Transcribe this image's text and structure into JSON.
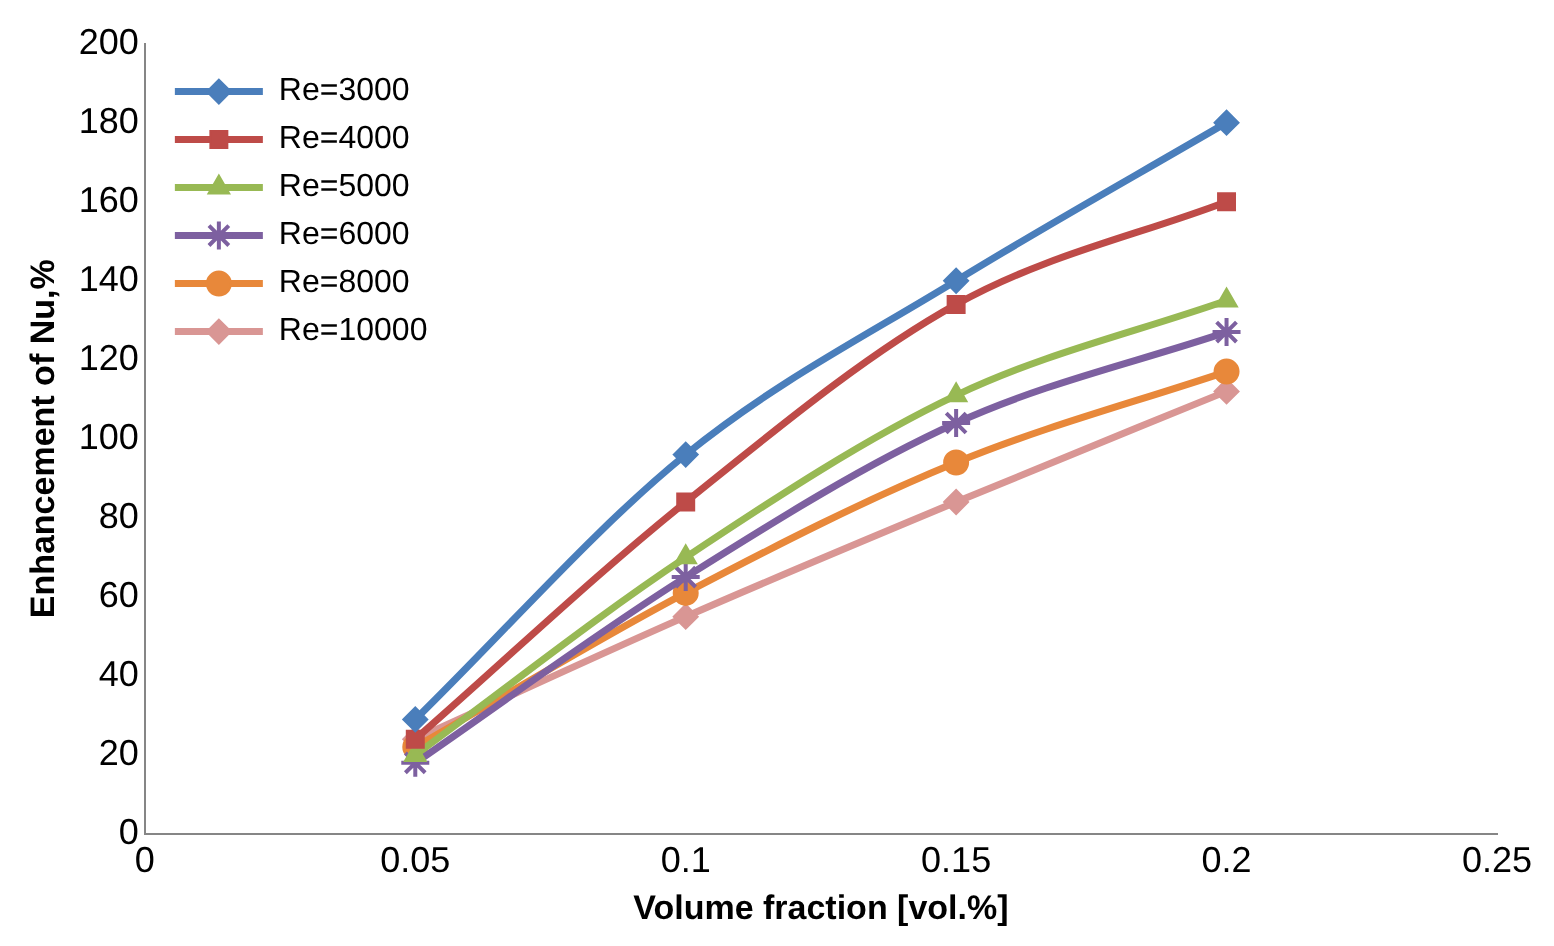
{
  "chart_data": {
    "type": "line",
    "xlabel": "Volume fraction [vol.%]",
    "ylabel": "Enhancement of Nu,%",
    "x": [
      0.05,
      0.1,
      0.15,
      0.2
    ],
    "xlim": [
      0,
      0.25
    ],
    "xticks": [
      0,
      0.05,
      0.1,
      0.15,
      0.2,
      0.25
    ],
    "ylim": [
      0,
      200
    ],
    "yticks": [
      0,
      20,
      40,
      60,
      80,
      100,
      120,
      140,
      160,
      180,
      200
    ],
    "grid": false,
    "legend": "top left",
    "series": [
      {
        "name": "Re=3000",
        "color": "#4a7ebb",
        "marker": "diamond",
        "values": [
          29,
          96,
          140,
          180
        ]
      },
      {
        "name": "Re=4000",
        "color": "#be4b48",
        "marker": "square",
        "values": [
          24,
          84,
          134,
          160
        ]
      },
      {
        "name": "Re=5000",
        "color": "#98b954",
        "marker": "triangle",
        "values": [
          20,
          70,
          111,
          135
        ]
      },
      {
        "name": "Re=6000",
        "color": "#7d60a0",
        "marker": "cross",
        "values": [
          18,
          65,
          104,
          127
        ]
      },
      {
        "name": "Re=8000",
        "color": "#e8883a",
        "marker": "circle",
        "values": [
          22,
          61,
          94,
          117
        ]
      },
      {
        "name": "Re=10000",
        "color": "#d99694",
        "marker": "diamond",
        "values": [
          24,
          55,
          84,
          112
        ]
      }
    ]
  }
}
